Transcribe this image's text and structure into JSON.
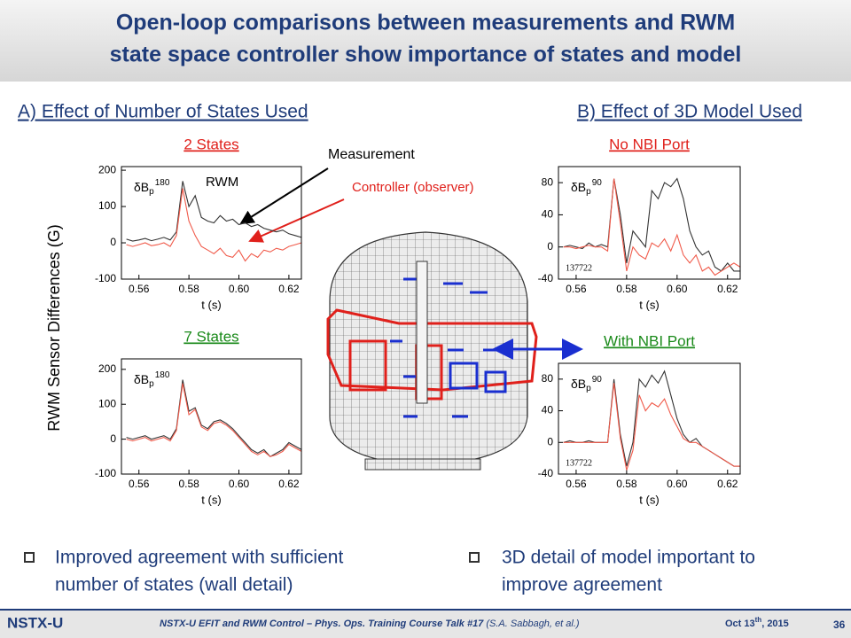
{
  "header": {
    "title": [
      "Open-loop comparisons between measurements and RWM",
      "state space controller show importance of states and model"
    ]
  },
  "slide": {
    "section_a": "A) Effect of Number of States Used",
    "section_b": "B) Effect of 3D Model Used",
    "ylabel": "RWM Sensor Differences (G)",
    "measurement_label": "Measurement",
    "controller_label": "Controller (observer)",
    "bullets": [
      "Improved agreement with sufficient",
      "number of states (wall detail)",
      "3D detail of model important to",
      "improve agreement"
    ],
    "footer": {
      "logo": "NSTX-U",
      "talk": "NSTX-U EFIT and RWM Control – Phys. Ops. Training Course Talk #17",
      "author": "(S.A. Sabbagh, et al.)",
      "date": "Oct 13",
      "date_sup": "th",
      "date_rest": ", 2015",
      "page": "36"
    }
  },
  "chart_data": [
    {
      "type": "line",
      "title": "2 States",
      "title_color": "#e0201b",
      "xlabel": "t (s)",
      "annotation": {
        "base": "δB",
        "sub": "p",
        "sup": "180"
      },
      "extra_label": "RWM",
      "x": [
        0.555,
        0.5575,
        0.56,
        0.5625,
        0.565,
        0.5675,
        0.57,
        0.5725,
        0.575,
        0.5775,
        0.58,
        0.5825,
        0.585,
        0.5875,
        0.59,
        0.5925,
        0.595,
        0.5975,
        0.6,
        0.6025,
        0.605,
        0.6075,
        0.61,
        0.6125,
        0.615,
        0.6175,
        0.62,
        0.6225,
        0.625
      ],
      "series": [
        {
          "color": "#333333",
          "values": [
            10,
            5,
            8,
            12,
            6,
            10,
            15,
            8,
            30,
            170,
            100,
            130,
            70,
            60,
            55,
            75,
            60,
            65,
            50,
            55,
            45,
            50,
            40,
            35,
            30,
            35,
            25,
            20,
            15
          ]
        },
        {
          "color": "#f05a4a",
          "values": [
            -5,
            -10,
            -5,
            0,
            -8,
            -5,
            0,
            -10,
            20,
            150,
            60,
            20,
            -10,
            -20,
            -30,
            -15,
            -35,
            -40,
            -20,
            -50,
            -30,
            -40,
            -20,
            -25,
            -15,
            -20,
            -10,
            -5,
            0
          ]
        }
      ],
      "xlim": [
        0.553,
        0.625
      ],
      "ylim": [
        -100,
        210
      ],
      "xticks": [
        0.56,
        0.58,
        {
          "value": 0.6,
          "label": "0.60"
        },
        0.62
      ],
      "yticks": [
        -100,
        0,
        100,
        200
      ]
    },
    {
      "type": "line",
      "title": "7 States",
      "title_color": "#1a8a1a",
      "xlabel": "t (s)",
      "annotation": {
        "base": "δB",
        "sub": "p",
        "sup": "180"
      },
      "x": [
        0.555,
        0.5575,
        0.56,
        0.5625,
        0.565,
        0.5675,
        0.57,
        0.5725,
        0.575,
        0.5775,
        0.58,
        0.5825,
        0.585,
        0.5875,
        0.59,
        0.5925,
        0.595,
        0.5975,
        0.6,
        0.6025,
        0.605,
        0.6075,
        0.61,
        0.6125,
        0.615,
        0.6175,
        0.62,
        0.6225,
        0.625
      ],
      "series": [
        {
          "color": "#333333",
          "values": [
            5,
            0,
            5,
            10,
            0,
            5,
            10,
            0,
            30,
            170,
            80,
            90,
            40,
            30,
            50,
            55,
            45,
            30,
            10,
            -10,
            -30,
            -40,
            -30,
            -50,
            -40,
            -30,
            -10,
            -20,
            -30
          ]
        },
        {
          "color": "#f05a4a",
          "values": [
            0,
            -5,
            0,
            5,
            -5,
            0,
            5,
            -5,
            25,
            160,
            70,
            85,
            35,
            25,
            45,
            50,
            40,
            25,
            5,
            -15,
            -35,
            -45,
            -35,
            -50,
            -45,
            -35,
            -15,
            -25,
            -35
          ]
        }
      ],
      "xlim": [
        0.553,
        0.625
      ],
      "ylim": [
        -100,
        230
      ],
      "xticks": [
        0.56,
        0.58,
        {
          "value": 0.6,
          "label": "0.60"
        },
        0.62
      ],
      "yticks": [
        -100,
        0,
        100,
        200
      ]
    },
    {
      "type": "line",
      "title": "No NBI Port",
      "title_color": "#e0201b",
      "xlabel": "t (s)",
      "annotation": {
        "base": "δB",
        "sub": "p",
        "sup": "90"
      },
      "extra_label": "137722",
      "x": [
        0.555,
        0.5575,
        0.56,
        0.5625,
        0.565,
        0.5675,
        0.57,
        0.5725,
        0.575,
        0.5775,
        0.58,
        0.5825,
        0.585,
        0.5875,
        0.59,
        0.5925,
        0.595,
        0.5975,
        0.6,
        0.6025,
        0.605,
        0.6075,
        0.61,
        0.6125,
        0.615,
        0.6175,
        0.62,
        0.6225,
        0.625
      ],
      "series": [
        {
          "color": "#333333",
          "values": [
            0,
            2,
            0,
            -2,
            5,
            0,
            3,
            0,
            85,
            40,
            -20,
            20,
            10,
            0,
            70,
            60,
            80,
            75,
            85,
            60,
            20,
            0,
            -10,
            -5,
            -25,
            -30,
            -20,
            -30,
            -30
          ]
        },
        {
          "color": "#f05a4a",
          "values": [
            0,
            0,
            -2,
            0,
            2,
            0,
            0,
            -5,
            85,
            30,
            -30,
            0,
            -10,
            -15,
            5,
            0,
            10,
            -5,
            15,
            -10,
            -20,
            -10,
            -30,
            -25,
            -35,
            -30,
            -25,
            -20,
            -25
          ]
        }
      ],
      "xlim": [
        0.553,
        0.625
      ],
      "ylim": [
        -40,
        100
      ],
      "xticks": [
        0.56,
        0.58,
        {
          "value": 0.6,
          "label": "0.60"
        },
        0.62
      ],
      "yticks": [
        -40,
        0,
        40,
        80
      ]
    },
    {
      "type": "line",
      "title": "With NBI Port",
      "title_color": "#1a8a1a",
      "xlabel": "t (s)",
      "annotation": {
        "base": "δB",
        "sub": "p",
        "sup": "90"
      },
      "extra_label": "137722",
      "x": [
        0.555,
        0.5575,
        0.56,
        0.5625,
        0.565,
        0.5675,
        0.57,
        0.5725,
        0.575,
        0.5775,
        0.58,
        0.5825,
        0.585,
        0.5875,
        0.59,
        0.5925,
        0.595,
        0.5975,
        0.6,
        0.6025,
        0.605,
        0.6075,
        0.61,
        0.6125,
        0.615,
        0.6175,
        0.62,
        0.6225,
        0.625
      ],
      "series": [
        {
          "color": "#333333",
          "values": [
            0,
            2,
            0,
            0,
            2,
            0,
            0,
            0,
            80,
            10,
            -30,
            0,
            80,
            70,
            85,
            75,
            90,
            60,
            30,
            10,
            0,
            5,
            -5,
            -10,
            -15,
            -20,
            -25,
            -30,
            -30
          ]
        },
        {
          "color": "#f05a4a",
          "values": [
            0,
            0,
            0,
            0,
            0,
            0,
            0,
            0,
            75,
            5,
            -35,
            -10,
            60,
            40,
            50,
            45,
            55,
            35,
            20,
            5,
            0,
            0,
            -5,
            -10,
            -15,
            -20,
            -25,
            -30,
            -30
          ]
        }
      ],
      "xlim": [
        0.553,
        0.625
      ],
      "ylim": [
        -40,
        100
      ],
      "xticks": [
        0.56,
        0.58,
        {
          "value": 0.6,
          "label": "0.60"
        },
        0.62
      ],
      "yticks": [
        -40,
        0,
        40,
        80
      ]
    }
  ]
}
